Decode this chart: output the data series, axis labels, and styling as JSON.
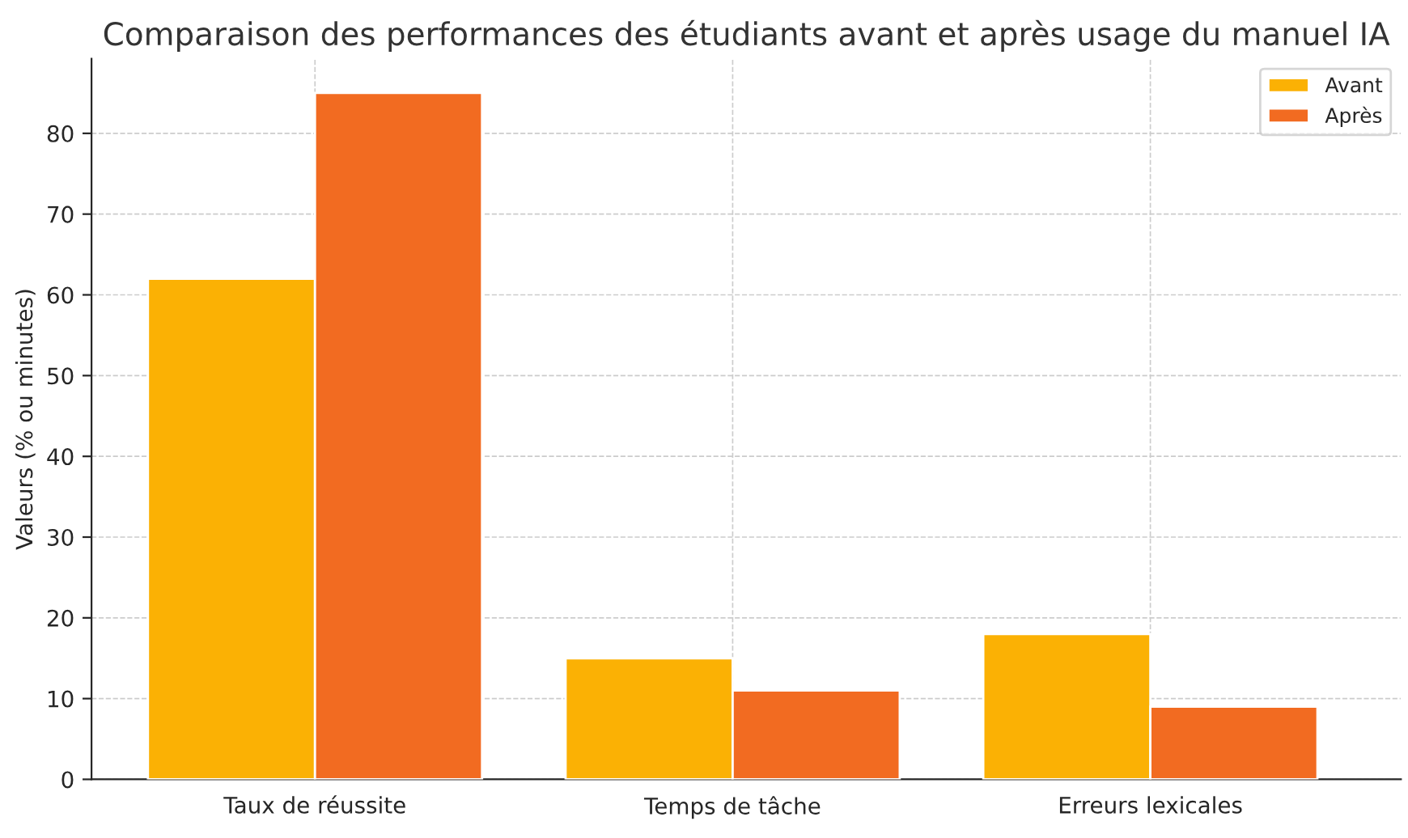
{
  "chart_data": {
    "type": "bar",
    "title": "Comparaison des performances des étudiants avant et après usage du manuel IA",
    "ylabel": "Valeurs (% ou minutes)",
    "categories": [
      "Taux de réussite",
      "Temps de tâche",
      "Erreurs lexicales"
    ],
    "series": [
      {
        "name": "Avant",
        "color": "#fbb104",
        "values": [
          62,
          15,
          18
        ]
      },
      {
        "name": "Après",
        "color": "#f26b21",
        "values": [
          85,
          11,
          9
        ]
      }
    ],
    "ylim": [
      0,
      89.25
    ],
    "yticks": [
      0,
      10,
      20,
      30,
      40,
      50,
      60,
      70,
      80
    ],
    "grid": true,
    "legend": "top right"
  }
}
